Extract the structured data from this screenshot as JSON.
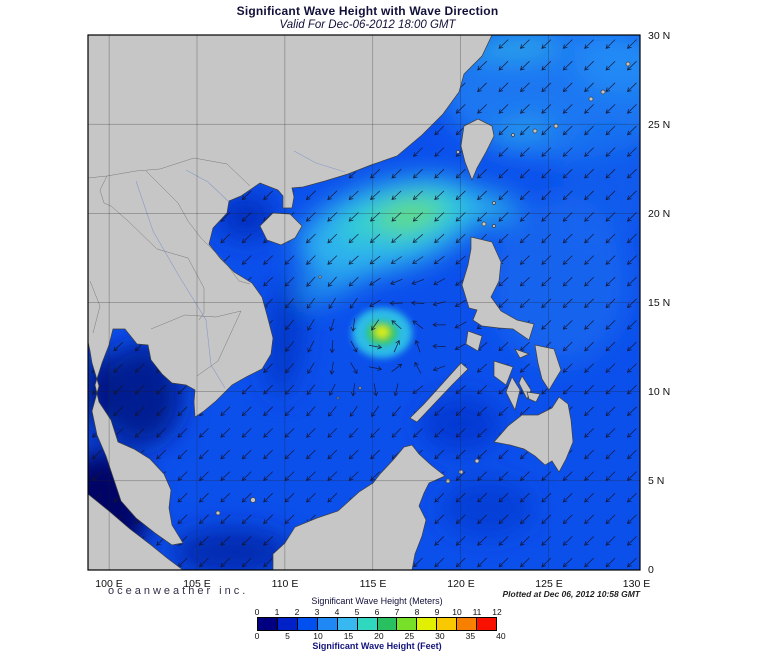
{
  "title": "Significant Wave Height with Wave Direction",
  "subtitle": "Valid For Dec-06-2012 18:00 GMT",
  "branding": "oceanweather inc.",
  "plotted_at": "Plotted at Dec 06, 2012 10:58 GMT",
  "map": {
    "lat_labels": [
      "30 N",
      "25 N",
      "20 N",
      "15 N",
      "10 N",
      "5 N",
      "0"
    ],
    "lon_labels": [
      "100 E",
      "105 E",
      "110 E",
      "115 E",
      "120 E",
      "125 E",
      "130 E"
    ]
  },
  "legend": {
    "meters_label": "Significant Wave Height (Meters)",
    "feet_label": "Significant Wave Height (Feet)",
    "meters_ticks": [
      "0",
      "1",
      "2",
      "3",
      "4",
      "5",
      "6",
      "7",
      "8",
      "9",
      "10",
      "11",
      "12"
    ],
    "feet_ticks": [
      "0",
      "5",
      "10",
      "15",
      "20",
      "25",
      "30",
      "35",
      "40"
    ],
    "colors": [
      "#000080",
      "#0020C8",
      "#0050F0",
      "#2088F4",
      "#38B8F0",
      "#30D8C0",
      "#28C060",
      "#78E028",
      "#E0F000",
      "#F8C800",
      "#F88000",
      "#F81000"
    ]
  },
  "wave_field": {
    "vortex": {
      "lon": 115.5,
      "lat": 13.3
    },
    "vortex_radius_deg": 3.6,
    "base_vector": [
      -0.72,
      -0.69
    ]
  }
}
